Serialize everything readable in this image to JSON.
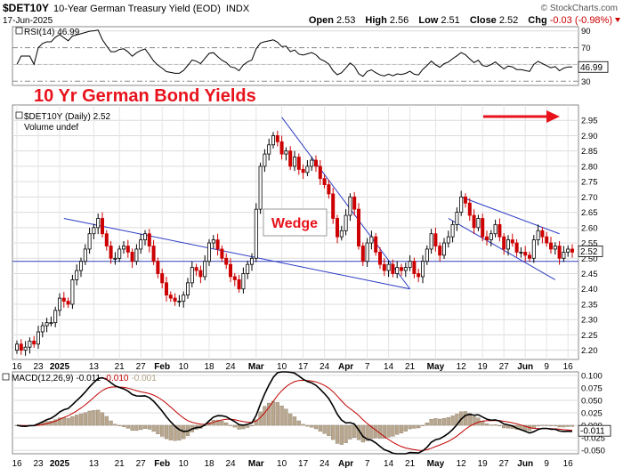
{
  "header": {
    "symbol": "$DET10Y",
    "description": "10-Year German Treasury Yield (EOD)",
    "exchange": "INDX",
    "date": "17-Jun-2025",
    "brand": "© StockCharts.com",
    "open_label": "Open",
    "open": "2.53",
    "high_label": "High",
    "high": "2.56",
    "low_label": "Low",
    "low": "2.51",
    "close_label": "Close",
    "close": "2.52",
    "chg_label": "Chg",
    "chg": "-0.03 (-0.98%)"
  },
  "annotations": {
    "title": "10 Yr German Bond Yields",
    "wedge_label": "Wedge"
  },
  "colors": {
    "up": "#000000",
    "down": "#cc0000",
    "trend": "#2b3bc4",
    "annotation": "#e8121c",
    "rsi": "#000000",
    "macd": "#000000",
    "signal": "#c00000",
    "hist": "#b9a88f"
  },
  "chart_data": [
    {
      "type": "candlestick",
      "legend": "$DET10Y (Daily) 2.52",
      "volume_label": "Volume undef",
      "ylim": [
        2.17,
        3.0
      ],
      "yticks": [
        "2.20",
        "2.25",
        "2.30",
        "2.35",
        "2.40",
        "2.45",
        "2.50",
        "2.55",
        "2.60",
        "2.65",
        "2.70",
        "2.75",
        "2.80",
        "2.85",
        "2.90",
        "2.95"
      ],
      "last_value": "2.52",
      "reference_level": 2.49,
      "xticks": [
        "16",
        "23",
        "2025",
        "13",
        "21",
        "27",
        "Feb",
        "10",
        "18",
        "24",
        "Mar",
        "10",
        "17",
        "24",
        "Apr",
        "7",
        "14",
        "21",
        "May",
        "12",
        "19",
        "27",
        "Jun",
        "9",
        "16"
      ],
      "xtick_idx": [
        0,
        5,
        10,
        18,
        24,
        29,
        34,
        39,
        45,
        50,
        56,
        62,
        67,
        72,
        77,
        82,
        87,
        92,
        98,
        104,
        109,
        114,
        119,
        124,
        129
      ],
      "trendlines": [
        {
          "from": [
            11,
            2.63
          ],
          "to": [
            92,
            2.4
          ]
        },
        {
          "from": [
            62,
            2.96
          ],
          "to": [
            92,
            2.4
          ]
        },
        {
          "from": [
            104,
            2.7
          ],
          "to": [
            127,
            2.58
          ]
        },
        {
          "from": [
            101,
            2.63
          ],
          "to": [
            126,
            2.43
          ]
        }
      ],
      "close": [
        2.22,
        2.2,
        2.21,
        2.23,
        2.22,
        2.26,
        2.28,
        2.29,
        2.29,
        2.33,
        2.37,
        2.36,
        2.35,
        2.43,
        2.46,
        2.49,
        2.53,
        2.58,
        2.6,
        2.63,
        2.58,
        2.54,
        2.5,
        2.5,
        2.53,
        2.54,
        2.52,
        2.49,
        2.53,
        2.56,
        2.58,
        2.54,
        2.49,
        2.45,
        2.42,
        2.38,
        2.37,
        2.36,
        2.36,
        2.38,
        2.42,
        2.47,
        2.46,
        2.44,
        2.49,
        2.55,
        2.56,
        2.53,
        2.5,
        2.48,
        2.44,
        2.43,
        2.4,
        2.45,
        2.48,
        2.5,
        2.66,
        2.8,
        2.84,
        2.87,
        2.9,
        2.88,
        2.84,
        2.85,
        2.8,
        2.83,
        2.79,
        2.78,
        2.8,
        2.82,
        2.8,
        2.76,
        2.74,
        2.71,
        2.63,
        2.57,
        2.59,
        2.64,
        2.7,
        2.66,
        2.54,
        2.49,
        2.55,
        2.57,
        2.52,
        2.48,
        2.46,
        2.48,
        2.45,
        2.47,
        2.46,
        2.47,
        2.49,
        2.45,
        2.44,
        2.49,
        2.53,
        2.58,
        2.54,
        2.51,
        2.55,
        2.57,
        2.61,
        2.65,
        2.7,
        2.68,
        2.64,
        2.6,
        2.63,
        2.57,
        2.56,
        2.58,
        2.61,
        2.57,
        2.53,
        2.56,
        2.55,
        2.52,
        2.52,
        2.51,
        2.5,
        2.56,
        2.59,
        2.57,
        2.55,
        2.53,
        2.54,
        2.5,
        2.52,
        2.53,
        2.52
      ],
      "rsi": {
        "label": "RSI(14) 46.99",
        "last": "46.99",
        "ylim": [
          25,
          95
        ],
        "yticks": [
          "90",
          "70",
          "50",
          "30"
        ],
        "levels": [
          70,
          30
        ]
      },
      "macd": {
        "label": "MACD(12,26,9) -0.011, -0.010, -0.001",
        "label_prefix": "MACD(12,26,9)",
        "macd_value": "-0.011",
        "signal_value": "-0.010",
        "hist_value": "-0.001",
        "last": "-0.011",
        "ylim": [
          -0.057,
          0.107
        ],
        "yticks": [
          "0.100",
          "0.075",
          "0.050",
          "0.025",
          "0.000",
          "-0.025",
          "-0.050"
        ]
      }
    }
  ]
}
